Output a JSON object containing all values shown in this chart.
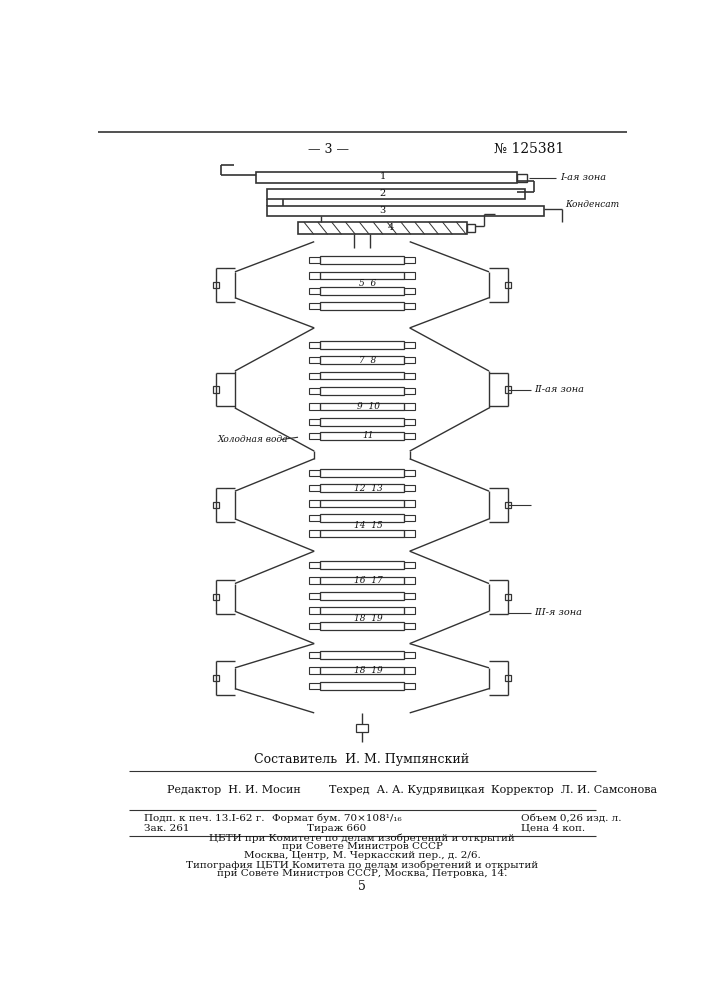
{
  "page_number_left": "— 3 —",
  "page_number_right": "№ 125381",
  "page_footer_number": "5",
  "composer": "Составитель  И. М. Пумпянский",
  "editor_row": "Редактор  Н. И. Мосин        Техред  А. А. Кудрявицкая        Корректор  Л. И. Самсонова",
  "line1_col1": "Подп. к печ. 13.I-62 г.",
  "line1_col2": "Формат бум. 70×108¹/₁₆",
  "line1_col3": "Объем 0,26 изд. л.",
  "line2_col1": "Зак. 261",
  "line2_col2": "Тираж 660",
  "line2_col3": "Цена 4 коп.",
  "address1": "ЦБТИ при Комитете по делам изобретений и открытий",
  "address2": "при Совете Министров СССР",
  "address3": "Москва, Центр, М. Черкасский пер., д. 2/6.",
  "print1": "Типография ЦБТИ Комитета по делам изобретений и открытий",
  "print2": "при Совете Министров СССР, Москва, Петровка, 14.",
  "zone1_label": "I-ая зона",
  "zone2_label": "II-ая зона",
  "zone3_label": "III-я зона",
  "kondensat": "Конденсат",
  "cold_water": "Холодная вода",
  "bg_color": "#ffffff",
  "line_color": "#333333",
  "text_color": "#111111"
}
